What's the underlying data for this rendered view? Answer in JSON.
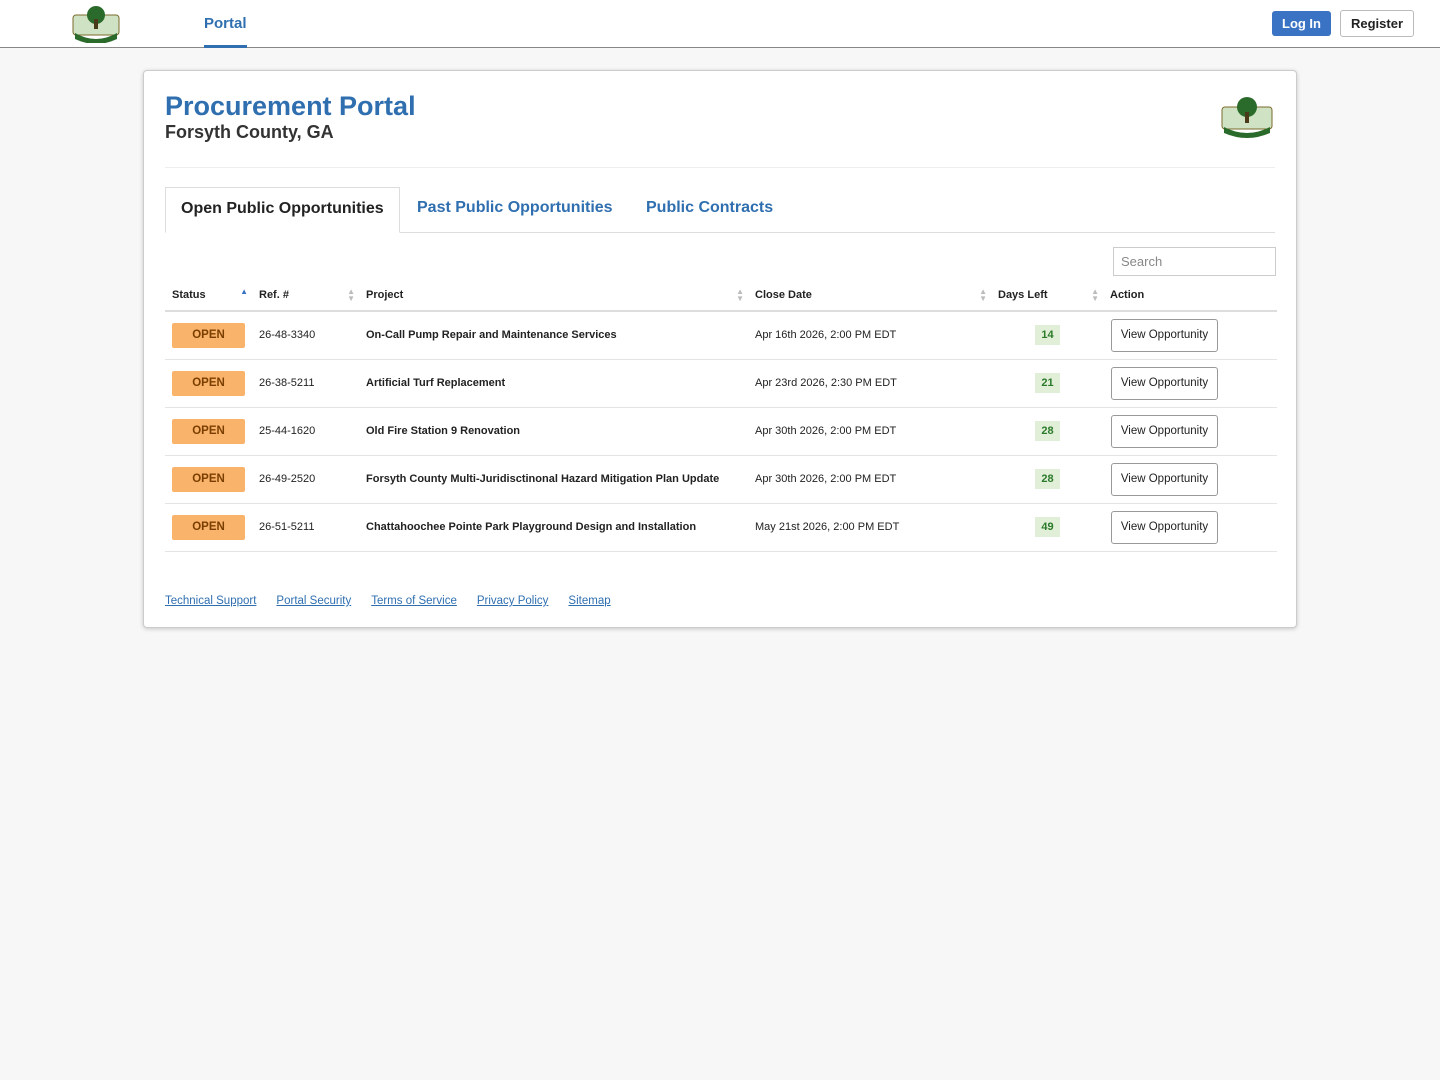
{
  "nav": {
    "portal": "Portal",
    "login": "Log In",
    "register": "Register"
  },
  "header": {
    "title": "Procurement Portal",
    "subtitle": "Forsyth County, GA"
  },
  "tabs": [
    "Open Public Opportunities",
    "Past Public Opportunities",
    "Public Contracts"
  ],
  "search": "Search",
  "table": {
    "columns": [
      "Status",
      "Ref. #",
      "Project",
      "Close Date",
      "Days Left",
      "Action"
    ],
    "rows": [
      [
        "OPEN",
        "26-48-3340",
        "On-Call Pump Repair and Maintenance Services",
        "Apr 16th 2026, 2:00 PM EDT",
        14,
        "View Opportunity"
      ],
      [
        "OPEN",
        "26-38-5211",
        "Artificial Turf Replacement",
        "Apr 23rd 2026, 2:30 PM EDT",
        21,
        "View Opportunity"
      ],
      [
        "OPEN",
        "25-44-1620",
        "Old Fire Station 9 Renovation",
        "Apr 30th 2026, 2:00 PM EDT",
        28,
        "View Opportunity"
      ],
      [
        "OPEN",
        "26-49-2520",
        "Forsyth County Multi-Juridisctinonal Hazard Mitigation Plan Update",
        "Apr 30th 2026, 2:00 PM EDT",
        28,
        "View Opportunity"
      ],
      [
        "OPEN",
        "26-51-5211",
        "Chattahoochee Pointe Park Playground Design and Installation",
        "May 21st 2026, 2:00 PM EDT",
        49,
        "View Opportunity"
      ]
    ]
  },
  "footer": [
    "Technical Support",
    "Portal Security",
    "Terms of Service",
    "Privacy Policy",
    "Sitemap"
  ]
}
